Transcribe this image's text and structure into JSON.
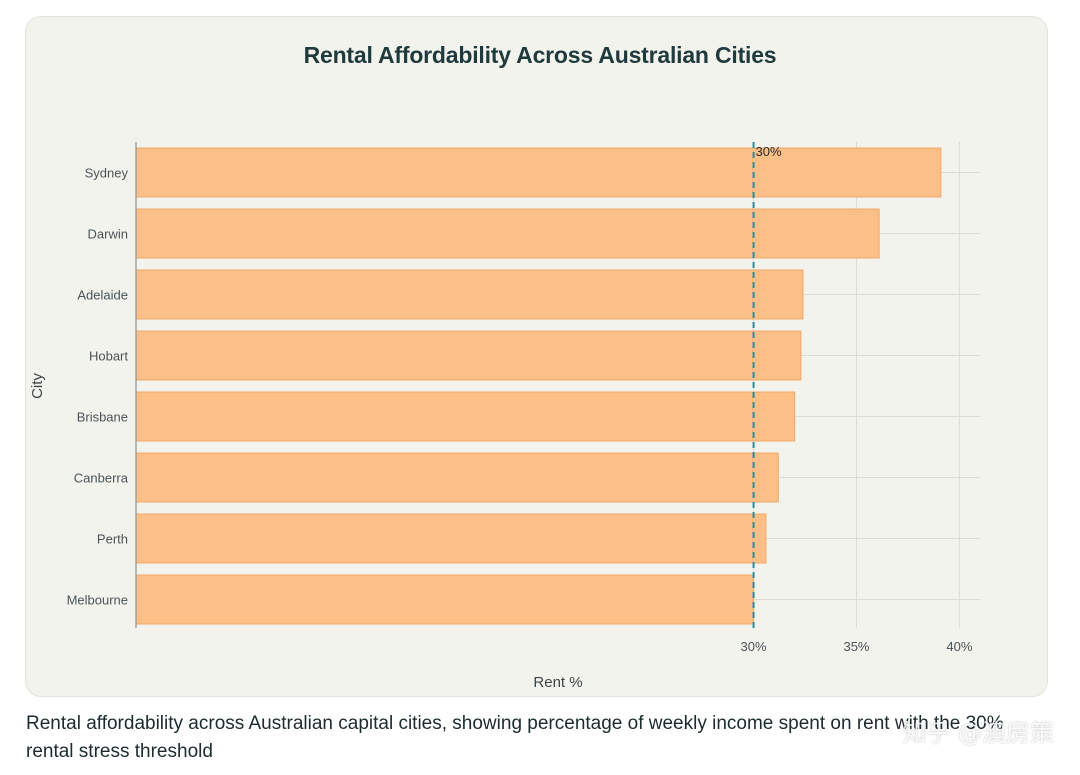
{
  "chart_data": {
    "type": "bar",
    "orientation": "horizontal",
    "title": "Rental Affordability Across Australian Cities",
    "xlabel": "Rent %",
    "ylabel": "City",
    "categories": [
      "Sydney",
      "Darwin",
      "Adelaide",
      "Hobart",
      "Brisbane",
      "Canberra",
      "Perth",
      "Melbourne"
    ],
    "values": [
      39.1,
      36.1,
      32.4,
      32.3,
      32.0,
      31.2,
      30.6,
      30.0
    ],
    "xlim": [
      0,
      41
    ],
    "xticks": [
      30,
      35,
      40
    ],
    "xtick_labels": [
      "30%",
      "35%",
      "40%"
    ],
    "threshold": {
      "value": 30,
      "label": "30%",
      "style": "dashed"
    },
    "grid": true,
    "bar_color": "#fcbf88",
    "bar_edge_color": "#f2a86a",
    "threshold_color": "#2d8c99"
  },
  "caption": "Rental affordability across Australian capital cities, showing percentage of weekly income spent on rent with the 30% rental stress threshold",
  "watermark": "知乎 @澳房策"
}
